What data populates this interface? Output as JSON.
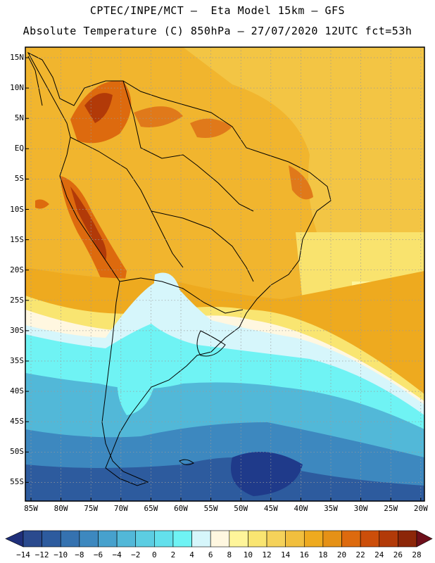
{
  "header": {
    "line1": "CPTEC/INPE/MCT –  Eta Model 15km – GFS",
    "line2": "Absolute Temperature (C) 850hPa – 27/07/2020 12UTC fct=53h"
  },
  "map": {
    "lat_labels": [
      "15N",
      "10N",
      "5N",
      "EQ",
      "5S",
      "10S",
      "15S",
      "20S",
      "25S",
      "30S",
      "35S",
      "40S",
      "45S",
      "50S",
      "55S"
    ],
    "lon_labels": [
      "85W",
      "80W",
      "75W",
      "70W",
      "65W",
      "60W",
      "55W",
      "50W",
      "45W",
      "40W",
      "35W",
      "30W",
      "25W",
      "20W"
    ]
  },
  "colorbar": {
    "labels": [
      "-14",
      "-12",
      "-10",
      "-8",
      "-6",
      "-4",
      "-2",
      "0",
      "2",
      "4",
      "6",
      "8",
      "10",
      "12",
      "14",
      "16",
      "18",
      "20",
      "22",
      "24",
      "26",
      "28"
    ],
    "colors": [
      "#2a4a8e",
      "#2d5b9e",
      "#3572b0",
      "#3d88bf",
      "#47a1cd",
      "#52b8d8",
      "#5ccde2",
      "#63e0ec",
      "#6ff3f4",
      "#d6f6fb",
      "#fff7e0",
      "#fff59a",
      "#f9e571",
      "#f5d25a",
      "#f1bf3e",
      "#eeaa1f",
      "#e59116",
      "#dd6a0e",
      "#cc4e0a",
      "#b23a08",
      "#8c2608"
    ],
    "under_color": "#1f2f7a",
    "over_color": "#6e0f1a"
  }
}
